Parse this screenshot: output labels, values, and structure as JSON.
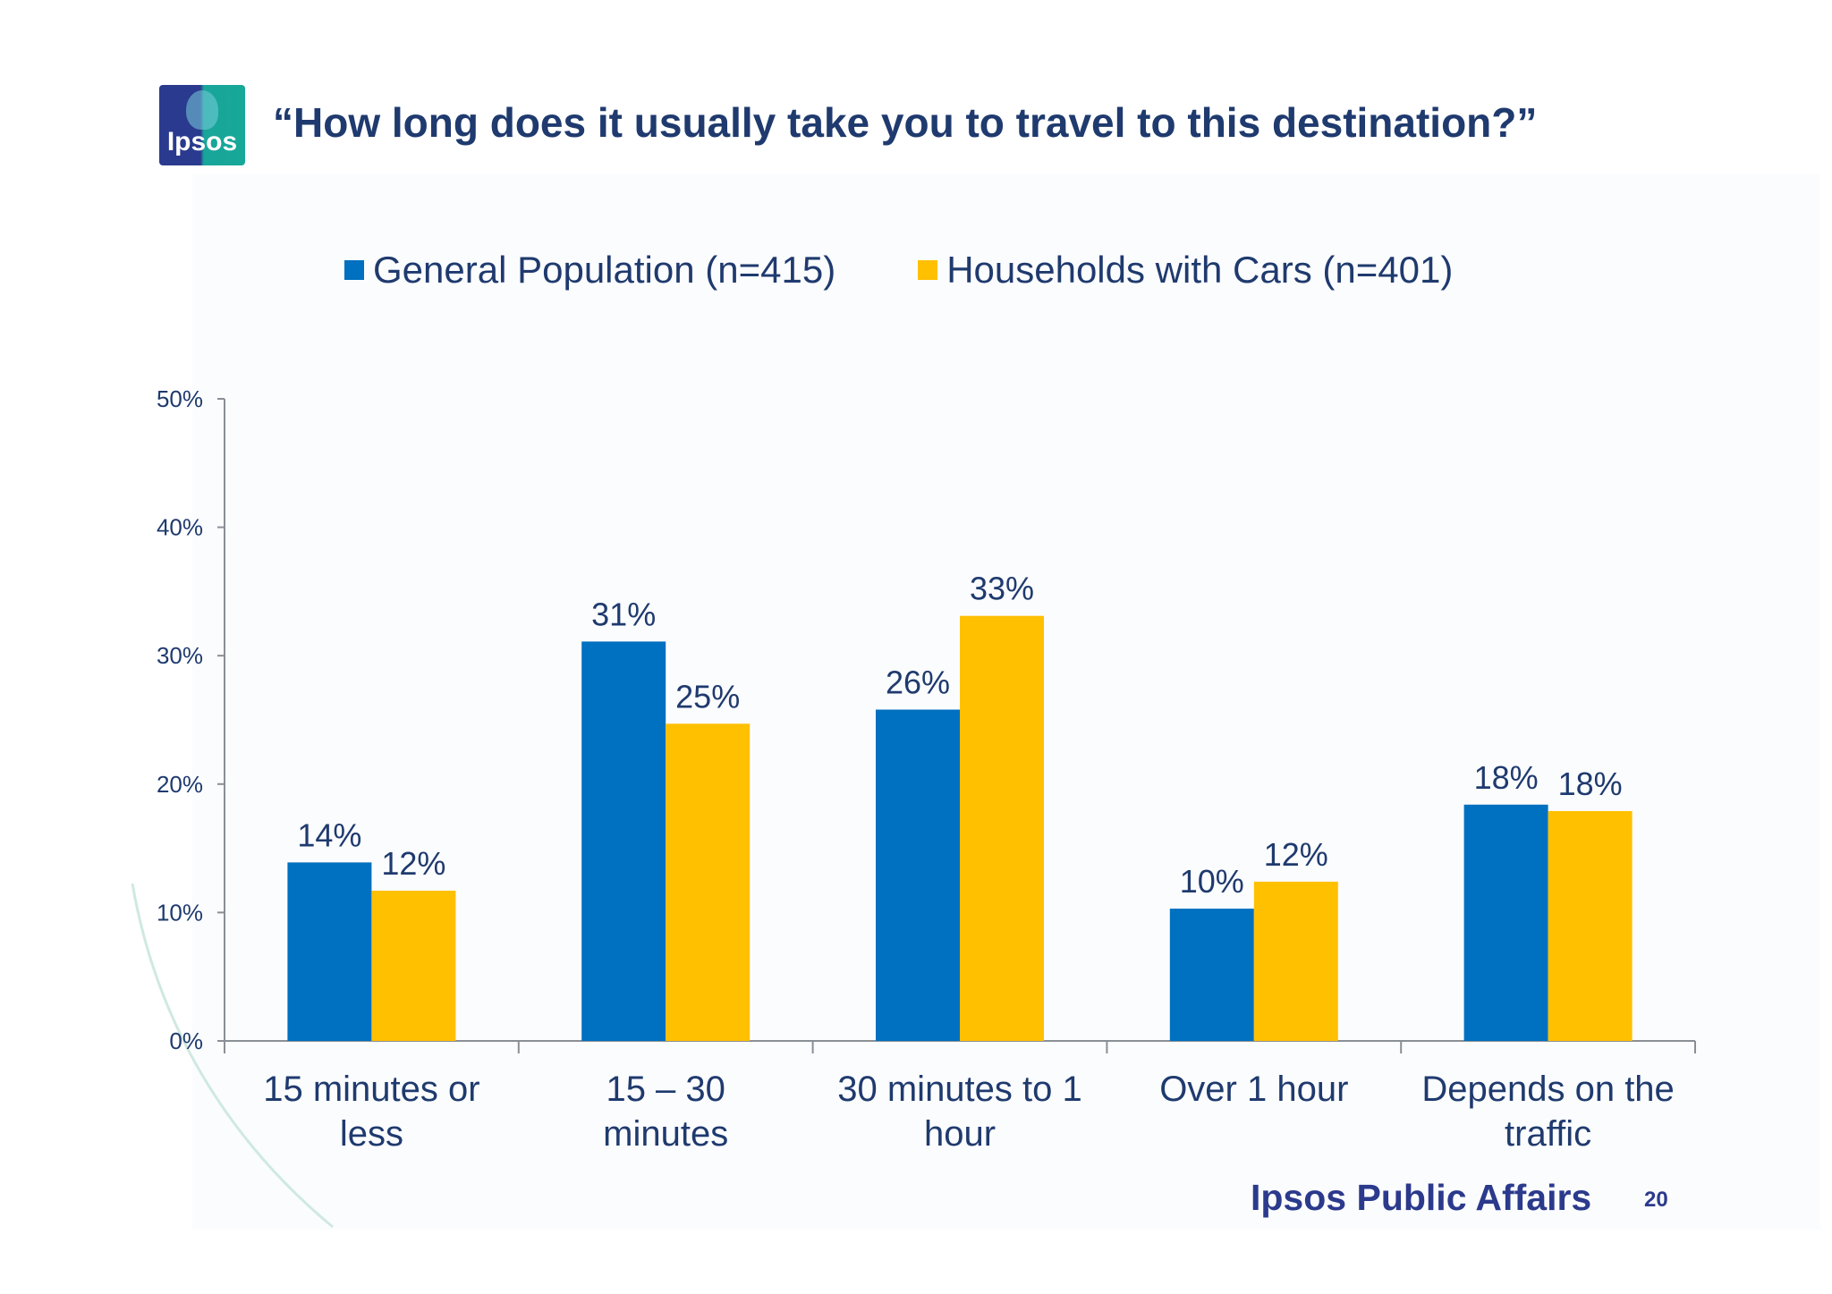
{
  "slide": {
    "title": "“How long does it usually take you to travel to this destination?”",
    "logo_text": "Ipsos",
    "brand": "Ipsos Public Affairs",
    "page_number": "20"
  },
  "colors": {
    "general_population": "#0070c0",
    "households_with_cars": "#ffc000",
    "title_text": "#1f3a6e",
    "axis_text": "#1f3a6e",
    "axis_line": "#8a8f96"
  },
  "chart_data": {
    "type": "bar",
    "categories": [
      [
        "15 minutes or",
        "less"
      ],
      [
        "15 – 30",
        "minutes"
      ],
      [
        "30 minutes to 1",
        "hour"
      ],
      [
        "Over 1 hour"
      ],
      [
        "Depends on the",
        "traffic"
      ]
    ],
    "series": [
      {
        "name": "General Population (n=415)",
        "values": [
          14,
          31,
          26,
          10,
          18
        ]
      },
      {
        "name": "Households with Cars (n=401)",
        "values": [
          12,
          25,
          33,
          12,
          18
        ]
      }
    ],
    "bar_heights": [
      [
        13.9,
        31.1,
        25.8,
        10.3,
        18.4
      ],
      [
        11.7,
        24.7,
        33.1,
        12.4,
        17.9
      ]
    ],
    "data_labels": [
      [
        "14%",
        "31%",
        "26%",
        "10%",
        "18%"
      ],
      [
        "12%",
        "25%",
        "33%",
        "12%",
        "18%"
      ]
    ],
    "y_ticks": [
      "0%",
      "10%",
      "20%",
      "30%",
      "40%",
      "50%"
    ],
    "ylim": [
      0,
      50
    ],
    "grid": false,
    "legend_position": "top"
  }
}
